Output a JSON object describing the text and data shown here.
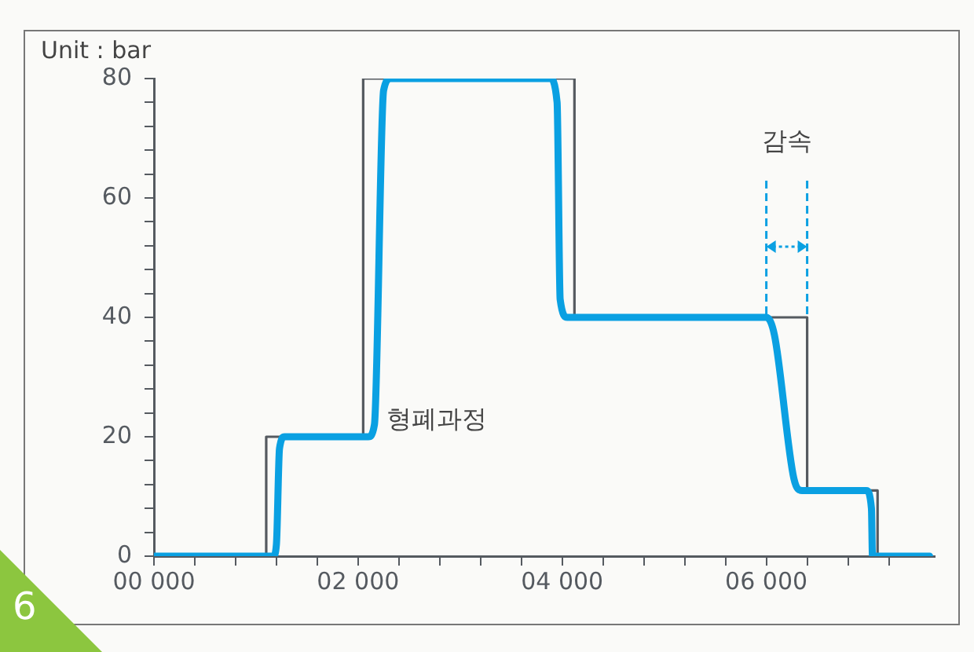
{
  "chart_data": {
    "type": "line",
    "ylabel": "Unit : bar",
    "xlim": [
      0,
      7650
    ],
    "xticks": [
      {
        "value": 0,
        "label": "00 000"
      },
      {
        "value": 400,
        "label": null
      },
      {
        "value": 800,
        "label": null
      },
      {
        "value": 1200,
        "label": null
      },
      {
        "value": 1600,
        "label": null
      },
      {
        "value": 2000,
        "label": "02 000"
      },
      {
        "value": 2400,
        "label": null
      },
      {
        "value": 2800,
        "label": null
      },
      {
        "value": 3200,
        "label": null
      },
      {
        "value": 3600,
        "label": null
      },
      {
        "value": 4000,
        "label": "04 000"
      },
      {
        "value": 4400,
        "label": null
      },
      {
        "value": 4800,
        "label": null
      },
      {
        "value": 5200,
        "label": null
      },
      {
        "value": 5600,
        "label": null
      },
      {
        "value": 6000,
        "label": "06 000"
      },
      {
        "value": 6400,
        "label": null
      },
      {
        "value": 6800,
        "label": null
      },
      {
        "value": 7200,
        "label": null
      }
    ],
    "ylim": [
      0,
      80
    ],
    "yticks": [
      0,
      {
        "value": 4,
        "label": null
      },
      {
        "value": 8,
        "label": null
      },
      {
        "value": 12,
        "label": null
      },
      {
        "value": 16,
        "label": null
      },
      20,
      {
        "value": 24,
        "label": null
      },
      {
        "value": 28,
        "label": null
      },
      {
        "value": 32,
        "label": null
      },
      {
        "value": 36,
        "label": null
      },
      40,
      {
        "value": 44,
        "label": null
      },
      {
        "value": 48,
        "label": null
      },
      {
        "value": 52,
        "label": null
      },
      {
        "value": 56,
        "label": null
      },
      60,
      {
        "value": 64,
        "label": null
      },
      {
        "value": 68,
        "label": null
      },
      {
        "value": 72,
        "label": null
      },
      {
        "value": 76,
        "label": null
      },
      80
    ],
    "grid": false,
    "legend": false,
    "series": [
      {
        "type": "step",
        "color": "#555a60",
        "x": [
          0,
          1100,
          2050,
          4120,
          6400,
          7090,
          7600
        ],
        "values": [
          0,
          20,
          80,
          40,
          11,
          0,
          0
        ]
      },
      {
        "color": "#0aa0e2",
        "x": [
          0,
          1170,
          1200,
          1230,
          1280,
          2100,
          2160,
          2250,
          2320,
          3880,
          3950,
          3980,
          4050,
          6000,
          6080,
          6270,
          6350,
          6980,
          7030,
          7040,
          7600
        ],
        "values": [
          0,
          0,
          2,
          18,
          20,
          20,
          22,
          78,
          80,
          80,
          76,
          43,
          40,
          40,
          37,
          13,
          11,
          11,
          8,
          0,
          0
        ]
      }
    ],
    "ref_lines": [
      {
        "axis": "x",
        "value": 6000,
        "color": "#0aa0e2",
        "line_style": "dashed"
      },
      {
        "axis": "x",
        "value": 6400,
        "color": "#0aa0e2",
        "line_style": "dashed"
      }
    ],
    "annotations": [
      "감속",
      "형폐과정",
      "6"
    ]
  }
}
